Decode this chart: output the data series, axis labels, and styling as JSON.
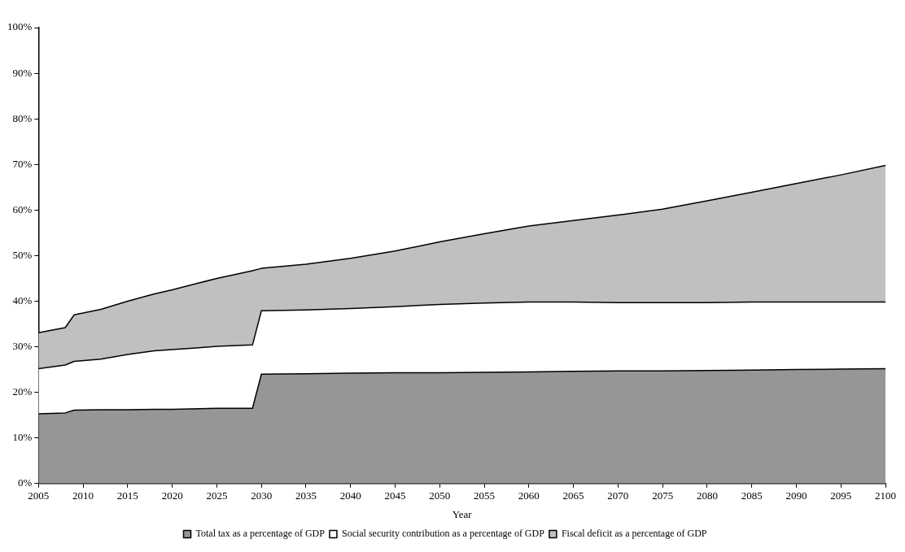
{
  "chart_data": {
    "type": "area",
    "xlabel": "Year",
    "stacked": true,
    "legend": "bottom",
    "grid": false,
    "x": [
      2005,
      2008,
      2009,
      2012,
      2015,
      2018,
      2020,
      2023,
      2025,
      2029,
      2030,
      2035,
      2040,
      2045,
      2050,
      2055,
      2060,
      2065,
      2070,
      2075,
      2080,
      2085,
      2090,
      2095,
      2100
    ],
    "xlim": [
      2005,
      2100
    ],
    "xticks": [
      2005,
      2010,
      2015,
      2020,
      2025,
      2030,
      2035,
      2040,
      2045,
      2050,
      2055,
      2060,
      2065,
      2070,
      2075,
      2080,
      2085,
      2090,
      2095,
      2100
    ],
    "ylim": [
      0,
      100
    ],
    "yticks": [
      {
        "value": 0,
        "label": "0%"
      },
      {
        "value": 10,
        "label": "10%"
      },
      {
        "value": 20,
        "label": "20%"
      },
      {
        "value": 30,
        "label": "30%"
      },
      {
        "value": 40,
        "label": "40%"
      },
      {
        "value": 50,
        "label": "50%"
      },
      {
        "value": 60,
        "label": "60%"
      },
      {
        "value": 70,
        "label": "70%"
      },
      {
        "value": 80,
        "label": "80%"
      },
      {
        "value": 90,
        "label": "90%"
      },
      {
        "value": 100,
        "label": "100%"
      }
    ],
    "series": [
      {
        "name": "Total tax as a percentage of GDP",
        "color": "#969696",
        "values": [
          15.3,
          15.5,
          16.1,
          16.2,
          16.2,
          16.3,
          16.3,
          16.4,
          16.5,
          16.5,
          24.0,
          24.1,
          24.2,
          24.3,
          24.3,
          24.4,
          24.5,
          24.6,
          24.7,
          24.7,
          24.8,
          24.9,
          25.0,
          25.1,
          25.2
        ]
      },
      {
        "name": "Social security contribution as a percentage of GDP",
        "color": "#ffffff",
        "values": [
          9.9,
          10.5,
          10.7,
          11.1,
          12.1,
          12.8,
          13.1,
          13.4,
          13.6,
          13.9,
          13.9,
          14.0,
          14.2,
          14.5,
          15.0,
          15.2,
          15.3,
          15.2,
          15.0,
          15.0,
          14.9,
          14.9,
          14.8,
          14.7,
          14.6
        ]
      },
      {
        "name": "Fiscal deficit as a percentage of GDP",
        "color": "#c0c0c0",
        "values": [
          7.9,
          8.2,
          10.2,
          10.9,
          11.7,
          12.5,
          13.1,
          14.2,
          14.9,
          16.3,
          9.3,
          10.0,
          11.0,
          12.2,
          13.7,
          15.2,
          16.7,
          17.9,
          19.2,
          20.5,
          22.3,
          24.1,
          26.0,
          27.9,
          30.0
        ]
      }
    ]
  }
}
